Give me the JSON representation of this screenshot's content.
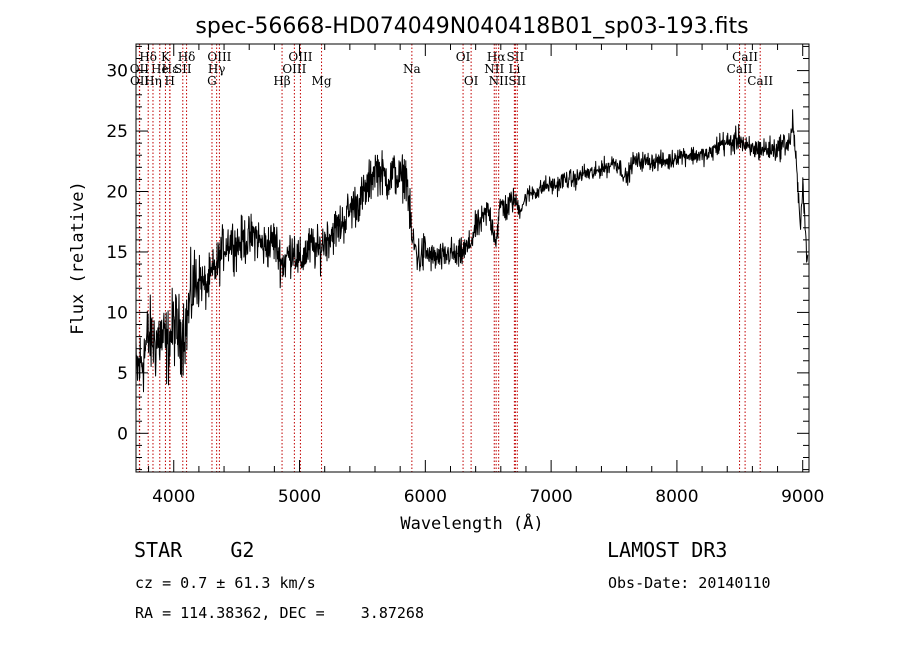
{
  "chart_data": {
    "type": "line",
    "title": "spec-56668-HD074049N040418B01_sp03-193.fits",
    "xlabel": "Wavelength (Å)",
    "ylabel": "Flux (relative)",
    "xlim": [
      3700,
      9050
    ],
    "ylim": [
      -3.2,
      32.2
    ],
    "x_ticks": [
      4000,
      5000,
      6000,
      7000,
      8000,
      9000
    ],
    "y_ticks": [
      0,
      5,
      10,
      15,
      20,
      25,
      30
    ],
    "series": [
      {
        "name": "spectrum",
        "x": [
          3700,
          3750,
          3800,
          3850,
          3900,
          3950,
          4000,
          4050,
          4100,
          4150,
          4200,
          4250,
          4300,
          4350,
          4400,
          4450,
          4500,
          4550,
          4600,
          4650,
          4700,
          4750,
          4800,
          4861,
          4900,
          4950,
          5000,
          5050,
          5100,
          5150,
          5200,
          5250,
          5300,
          5350,
          5400,
          5450,
          5500,
          5550,
          5600,
          5650,
          5700,
          5750,
          5800,
          5850,
          5893,
          5950,
          6000,
          6050,
          6100,
          6150,
          6200,
          6250,
          6300,
          6350,
          6400,
          6450,
          6500,
          6563,
          6600,
          6650,
          6700,
          6750,
          6800,
          6850,
          6900,
          6950,
          7000,
          7050,
          7100,
          7150,
          7200,
          7250,
          7300,
          7350,
          7400,
          7450,
          7500,
          7550,
          7600,
          7650,
          7700,
          7750,
          7800,
          7850,
          7900,
          7950,
          8000,
          8050,
          8100,
          8150,
          8200,
          8250,
          8300,
          8350,
          8400,
          8450,
          8500,
          8550,
          8600,
          8650,
          8700,
          8750,
          8800,
          8850,
          8900,
          8920,
          8950,
          8980,
          9000,
          9030,
          9050
        ],
        "y": [
          5,
          6,
          8,
          7.5,
          8,
          7,
          9,
          8,
          9,
          12,
          13,
          12,
          13,
          14,
          15.5,
          16,
          15.5,
          16,
          16,
          16.5,
          15.5,
          15.5,
          16,
          14,
          14.5,
          15.5,
          14,
          15,
          15.5,
          15,
          16,
          16.5,
          17,
          17.5,
          18.5,
          19,
          19.5,
          20.5,
          22,
          21.5,
          21,
          21.5,
          21,
          21.5,
          16,
          14.5,
          15,
          14.5,
          14.5,
          14.5,
          15,
          14.5,
          15,
          15.5,
          17,
          17.5,
          18.5,
          16,
          19,
          18.5,
          19.5,
          18.5,
          19.5,
          20,
          20,
          20.5,
          20.5,
          20.5,
          21,
          21,
          21,
          21.5,
          21.5,
          21.5,
          22,
          22,
          22.5,
          22,
          21,
          22.5,
          22.5,
          22.5,
          22.5,
          22.5,
          22.5,
          22.5,
          23,
          23,
          23,
          23,
          23,
          23,
          23.5,
          24,
          24,
          24,
          24.5,
          23.5,
          23.5,
          23.5,
          23.5,
          23.5,
          23.5,
          24,
          24,
          26,
          22,
          17,
          21,
          15,
          15
        ]
      }
    ],
    "line_markers": [
      {
        "label": "Hδ",
        "x": 3797,
        "row": 1
      },
      {
        "label": "OII",
        "x": 3727,
        "row": 2
      },
      {
        "label": "OII",
        "x": 3729,
        "row": 3
      },
      {
        "label": "K",
        "x": 3934,
        "row": 1
      },
      {
        "label": "He",
        "x": 3889,
        "row": 2
      },
      {
        "label": "Hη",
        "x": 3835,
        "row": 3
      },
      {
        "label": "Hε",
        "x": 3970,
        "row": 2
      },
      {
        "label": "H",
        "x": 3968,
        "row": 3
      },
      {
        "label": "Hδ",
        "x": 4102,
        "row": 1
      },
      {
        "label": "SII",
        "x": 4072,
        "row": 2
      },
      {
        "label": "OIII",
        "x": 4363,
        "row": 1
      },
      {
        "label": "Hγ",
        "x": 4341,
        "row": 2
      },
      {
        "label": "G",
        "x": 4304,
        "row": 3
      },
      {
        "label": "OIII",
        "x": 5007,
        "row": 1
      },
      {
        "label": "OIII",
        "x": 4959,
        "row": 2
      },
      {
        "label": "Hβ",
        "x": 4861,
        "row": 3
      },
      {
        "label": "Mg",
        "x": 5175,
        "row": 3
      },
      {
        "label": "Na",
        "x": 5893,
        "row": 2
      },
      {
        "label": "OI",
        "x": 6300,
        "row": 1
      },
      {
        "label": "OI",
        "x": 6364,
        "row": 3
      },
      {
        "label": "Hα",
        "x": 6563,
        "row": 1
      },
      {
        "label": "NII",
        "x": 6548,
        "row": 2
      },
      {
        "label": "NII",
        "x": 6583,
        "row": 3
      },
      {
        "label": "SII",
        "x": 6716,
        "row": 1
      },
      {
        "label": "Li",
        "x": 6708,
        "row": 2
      },
      {
        "label": "SII",
        "x": 6731,
        "row": 3
      },
      {
        "label": "CaII",
        "x": 8542,
        "row": 1
      },
      {
        "label": "CaII",
        "x": 8498,
        "row": 2
      },
      {
        "label": "CaII",
        "x": 8662,
        "row": 3
      }
    ]
  },
  "info": {
    "object_class": "STAR    G2",
    "survey": "LAMOST DR3",
    "redshift": "cz = 0.7 ± 61.3 km/s",
    "obs_date": "Obs-Date: 20140110",
    "coordinates": "RA = 114.38362, DEC =    3.87268"
  },
  "colors": {
    "spectrum": "#000000",
    "marker_line": "#c00000",
    "axis": "#000000"
  }
}
